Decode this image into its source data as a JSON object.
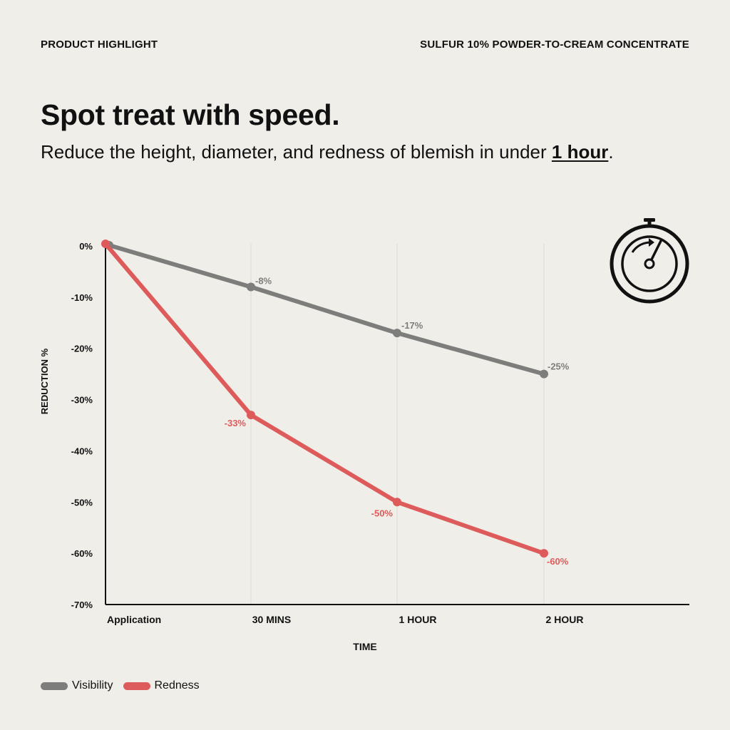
{
  "header": {
    "eyebrow_left": "PRODUCT HIGHLIGHT",
    "eyebrow_right": "SULFUR 10% POWDER-TO-CREAM CONCENTRATE",
    "headline": "Spot treat with speed.",
    "subhead_pre": "Reduce the height, diameter, and redness of blemish in under ",
    "subhead_em": "1 hour",
    "subhead_post": "."
  },
  "icon": {
    "name": "stopwatch-icon"
  },
  "chart_data": {
    "type": "line",
    "categories": [
      "Application",
      "30 MINS",
      "1 HOUR",
      "2 HOUR"
    ],
    "xlabel": "TIME",
    "ylabel": "REDUCTION %",
    "ylim": [
      -70,
      0
    ],
    "yticks": [
      0,
      -10,
      -20,
      -30,
      -40,
      -50,
      -60,
      -70
    ],
    "ytick_labels": [
      "0%",
      "-10%",
      "-20%",
      "-30%",
      "-40%",
      "-50%",
      "-60%",
      "-70%"
    ],
    "grid": "vertical",
    "legend_position": "bottom-left",
    "series": [
      {
        "name": "Visibility",
        "color": "#7d7d7b",
        "values": [
          0,
          -8,
          -17,
          -25
        ],
        "labels": [
          "",
          "-8%",
          "-17%",
          "-25%"
        ]
      },
      {
        "name": "Redness",
        "color": "#dd5b5b",
        "values": [
          0,
          -33,
          -50,
          -60
        ],
        "labels": [
          "",
          "-33%",
          "-50%",
          "-60%"
        ]
      }
    ]
  }
}
